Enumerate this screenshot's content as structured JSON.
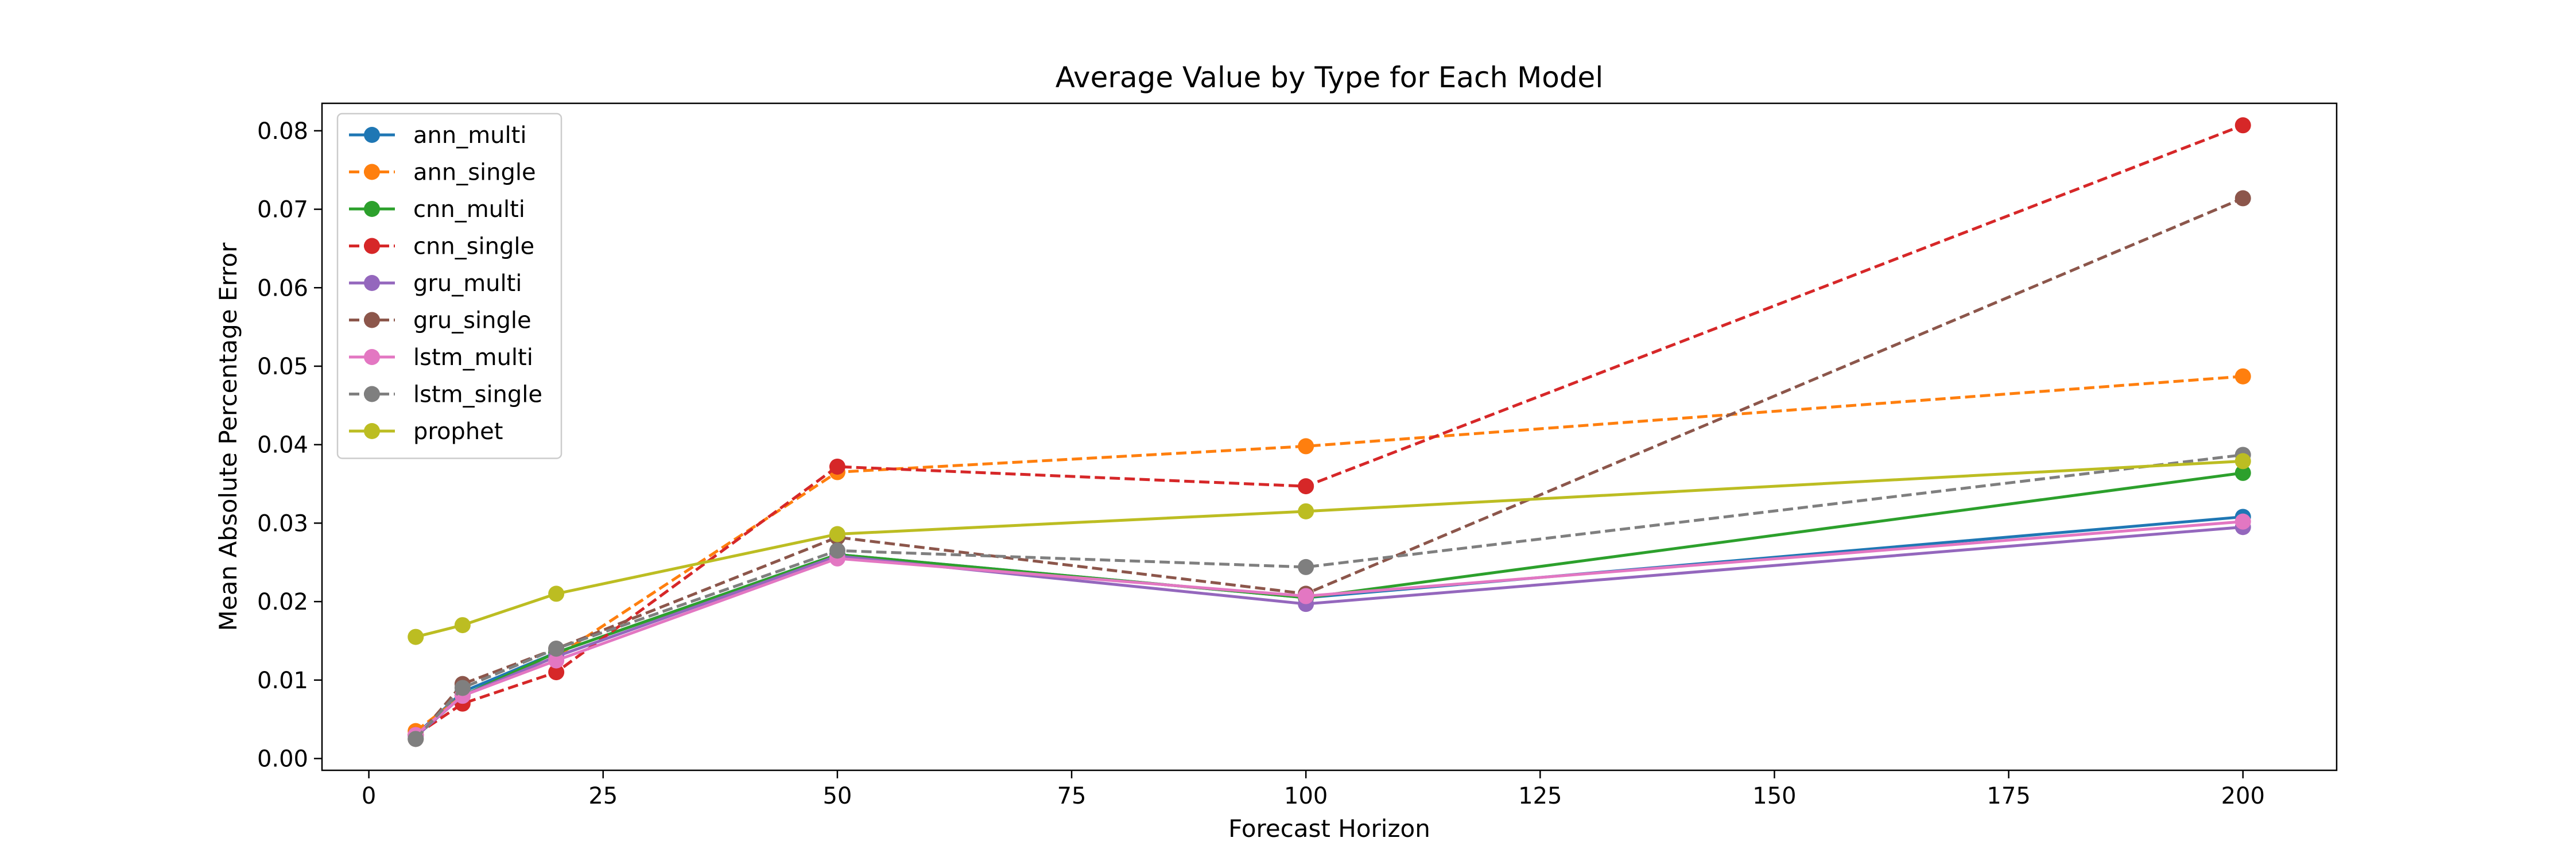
{
  "chart_data": {
    "type": "line",
    "title": "Average Value by Type for Each Model",
    "xlabel": "Forecast Horizon",
    "ylabel": "Mean Absolute Percentage Error",
    "x": [
      5,
      10,
      20,
      50,
      100,
      200
    ],
    "xlim": [
      -5,
      210
    ],
    "ylim": [
      -0.0015,
      0.0835
    ],
    "xticks": [
      "0",
      "25",
      "50",
      "75",
      "100",
      "125",
      "150",
      "175",
      "200"
    ],
    "yticks": [
      "0.00",
      "0.01",
      "0.02",
      "0.03",
      "0.04",
      "0.05",
      "0.06",
      "0.07",
      "0.08"
    ],
    "grid": false,
    "legend_position": "upper-left",
    "series": [
      {
        "name": "ann_multi",
        "color": "#1f77b4",
        "dash": "solid",
        "values": [
          0.003,
          0.0085,
          0.0135,
          0.026,
          0.0205,
          0.0308
        ]
      },
      {
        "name": "ann_single",
        "color": "#ff7f0e",
        "dash": "dashed",
        "values": [
          0.0035,
          0.008,
          0.013,
          0.0365,
          0.0398,
          0.0487
        ]
      },
      {
        "name": "cnn_multi",
        "color": "#2ca02c",
        "dash": "solid",
        "values": [
          0.003,
          0.008,
          0.0135,
          0.026,
          0.0205,
          0.0364
        ]
      },
      {
        "name": "cnn_single",
        "color": "#d62728",
        "dash": "dashed",
        "values": [
          0.003,
          0.007,
          0.011,
          0.0372,
          0.0347,
          0.0807
        ]
      },
      {
        "name": "gru_multi",
        "color": "#9467bd",
        "dash": "solid",
        "values": [
          0.0028,
          0.008,
          0.013,
          0.0258,
          0.0197,
          0.0295
        ]
      },
      {
        "name": "gru_single",
        "color": "#8c564b",
        "dash": "dashed",
        "values": [
          0.0025,
          0.0095,
          0.014,
          0.0282,
          0.021,
          0.0714
        ]
      },
      {
        "name": "lstm_multi",
        "color": "#e377c2",
        "dash": "solid",
        "values": [
          0.003,
          0.008,
          0.0125,
          0.0255,
          0.0207,
          0.0302
        ]
      },
      {
        "name": "lstm_single",
        "color": "#7f7f7f",
        "dash": "dashed",
        "values": [
          0.0025,
          0.009,
          0.014,
          0.0265,
          0.0244,
          0.0387
        ]
      },
      {
        "name": "prophet",
        "color": "#bcbd22",
        "dash": "solid",
        "values": [
          0.0155,
          0.017,
          0.021,
          0.0286,
          0.0315,
          0.0379
        ]
      }
    ]
  }
}
